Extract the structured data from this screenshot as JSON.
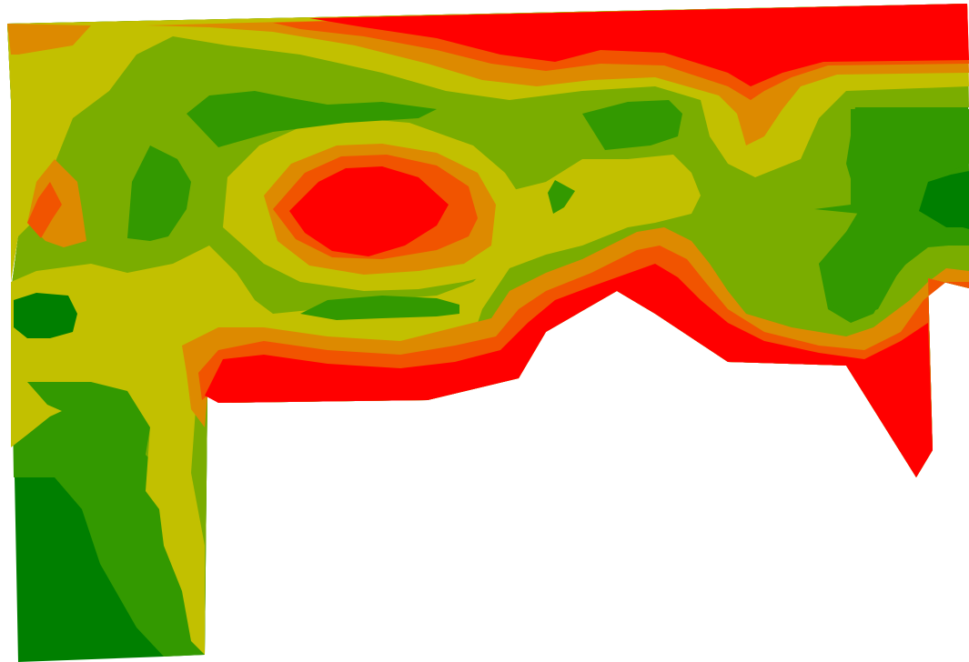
{
  "map": {
    "background": "#ffffff",
    "palette": {
      "level_1": "#007f00",
      "level_2": "#339900",
      "level_3": "#7aad00",
      "level_4": "#c2c000",
      "level_5": "#dd8a00",
      "level_6": "#f15400",
      "level_7": "#ff0000"
    }
  }
}
